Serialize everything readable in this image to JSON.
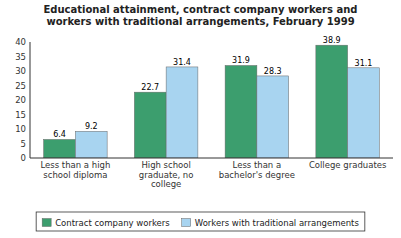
{
  "chart_data": {
    "type": "bar",
    "title": "Educational attainment, contract company workers and\nworkers with traditional arrangements, February 1999",
    "categories": [
      "Less than a high\nschool diploma",
      "High school\ngraduate, no\ncollege",
      "Less than a\nbachelor's degree",
      "College graduates"
    ],
    "series": [
      {
        "name": "Contract company workers",
        "color": "#3c9e6e",
        "values": [
          6.4,
          22.7,
          31.9,
          38.9
        ]
      },
      {
        "name": "Workers with traditional arrangements",
        "color": "#a8d4f0",
        "values": [
          9.2,
          31.4,
          28.3,
          31.1
        ]
      }
    ],
    "ylim": [
      0,
      40
    ],
    "yticks": [
      0,
      5,
      10,
      15,
      20,
      25,
      30,
      35,
      40
    ],
    "grid": false,
    "legend": "bottom",
    "data_labels": true
  }
}
